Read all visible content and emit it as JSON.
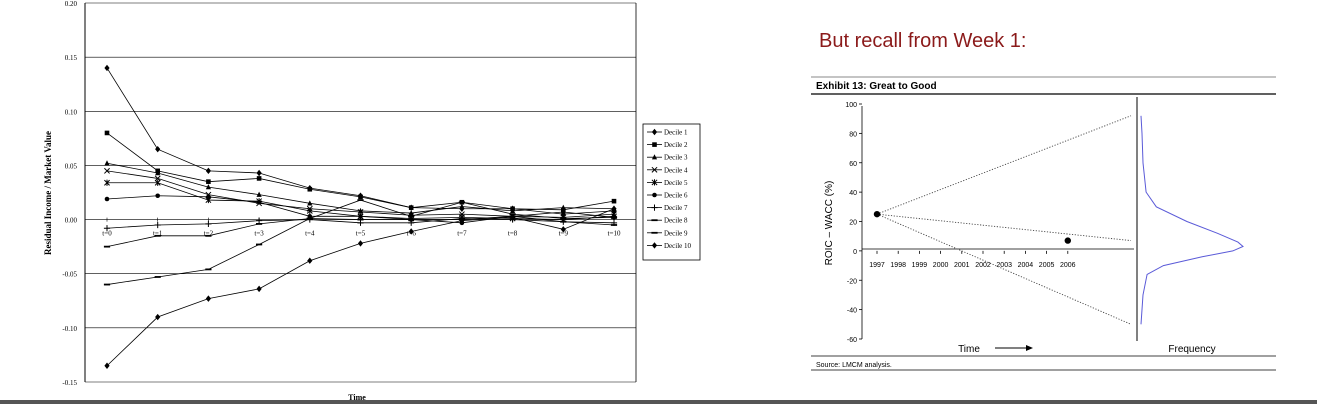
{
  "chart_data": [
    {
      "type": "line",
      "title": "",
      "xlabel": "Time",
      "ylabel": "Residual Income / Market Value",
      "ylim": [
        -0.15,
        0.2
      ],
      "yticks": [
        "0.20",
        "0.15",
        "0.10",
        "0.05",
        "0.00",
        "-0.05",
        "-0.10",
        "-0.15"
      ],
      "categories": [
        "t=0",
        "t=1",
        "t=2",
        "t=3",
        "t=4",
        "t=5",
        "t=6",
        "t=7",
        "t=8",
        "t=9",
        "t=10"
      ],
      "grid": true,
      "legend": "right",
      "series": [
        {
          "name": "Decile 1",
          "marker": "diamond",
          "values": [
            0.14,
            0.065,
            0.045,
            0.043,
            0.029,
            0.022,
            0.011,
            0.01,
            0.01,
            0.005,
            0.008
          ]
        },
        {
          "name": "Decile 2",
          "marker": "square",
          "values": [
            0.08,
            0.045,
            0.035,
            0.038,
            0.028,
            0.021,
            0.011,
            0.016,
            0.01,
            0.009,
            0.017
          ]
        },
        {
          "name": "Decile 3",
          "marker": "triangle",
          "values": [
            0.052,
            0.043,
            0.03,
            0.023,
            0.015,
            0.008,
            0.006,
            0.012,
            0.008,
            0.011,
            0.01
          ]
        },
        {
          "name": "Decile 4",
          "marker": "x",
          "values": [
            0.045,
            0.038,
            0.023,
            0.015,
            0.01,
            0.007,
            0.004,
            0.005,
            0.003,
            0.002,
            0.005
          ]
        },
        {
          "name": "Decile 5",
          "marker": "star",
          "values": [
            0.034,
            0.034,
            0.018,
            0.017,
            0.008,
            0.003,
            0.001,
            0.002,
            0.001,
            0.0,
            0.003
          ]
        },
        {
          "name": "Decile 6",
          "marker": "circle",
          "values": [
            0.019,
            0.022,
            0.021,
            0.016,
            0.003,
            0.003,
            0.0,
            -0.003,
            0.003,
            0.007,
            0.002
          ]
        },
        {
          "name": "Decile 7",
          "marker": "plus",
          "values": [
            -0.008,
            -0.005,
            -0.004,
            -0.001,
            0.0,
            -0.003,
            -0.003,
            0.001,
            0.0,
            -0.002,
            -0.003
          ]
        },
        {
          "name": "Decile 8",
          "marker": "dash",
          "values": [
            -0.025,
            -0.015,
            -0.015,
            -0.004,
            0.001,
            0.0,
            0.0,
            0.0,
            0.003,
            -0.002,
            -0.005
          ]
        },
        {
          "name": "Decile 9",
          "marker": "dash",
          "values": [
            -0.06,
            -0.053,
            -0.046,
            -0.023,
            0.001,
            0.018,
            0.003,
            0.016,
            0.005,
            0.001,
            0.002
          ]
        },
        {
          "name": "Decile 10",
          "marker": "diamond",
          "values": [
            -0.135,
            -0.09,
            -0.073,
            -0.064,
            -0.038,
            -0.022,
            -0.011,
            -0.001,
            0.002,
            -0.009,
            0.01
          ]
        }
      ]
    },
    {
      "type": "scatter",
      "title": "Exhibit 13: Great to Good",
      "xlabel": "Time",
      "ylabel": "ROIC – WACC (%)",
      "right_panel_label": "Frequency",
      "source": "Source: LMCM analysis.",
      "x_categories": [
        "1997",
        "1998",
        "1999",
        "2000",
        "2001",
        "2002",
        "2003",
        "2004",
        "2005",
        "2006"
      ],
      "ylim": [
        -60,
        100
      ],
      "yticks": [
        "100",
        "80",
        "60",
        "40",
        "20",
        "0",
        "-20",
        "-40",
        "-60"
      ],
      "points": [
        {
          "x": "1997",
          "y": 25
        },
        {
          "x": "2006",
          "y": 7
        }
      ],
      "dotted_lines_from": {
        "x": "1997",
        "y": 25
      },
      "dotted_lines_to_y": [
        92,
        7,
        -50
      ],
      "frequency_curve": [
        [
          92,
          0.0
        ],
        [
          80,
          0.01
        ],
        [
          60,
          0.02
        ],
        [
          40,
          0.05
        ],
        [
          30,
          0.15
        ],
        [
          20,
          0.45
        ],
        [
          12,
          0.75
        ],
        [
          6,
          0.95
        ],
        [
          3,
          1.0
        ],
        [
          0,
          0.9
        ],
        [
          -4,
          0.6
        ],
        [
          -10,
          0.22
        ],
        [
          -16,
          0.06
        ],
        [
          -30,
          0.02
        ],
        [
          -50,
          0.0
        ]
      ]
    }
  ],
  "page": {
    "recall_heading": "But recall from Week 1:"
  }
}
